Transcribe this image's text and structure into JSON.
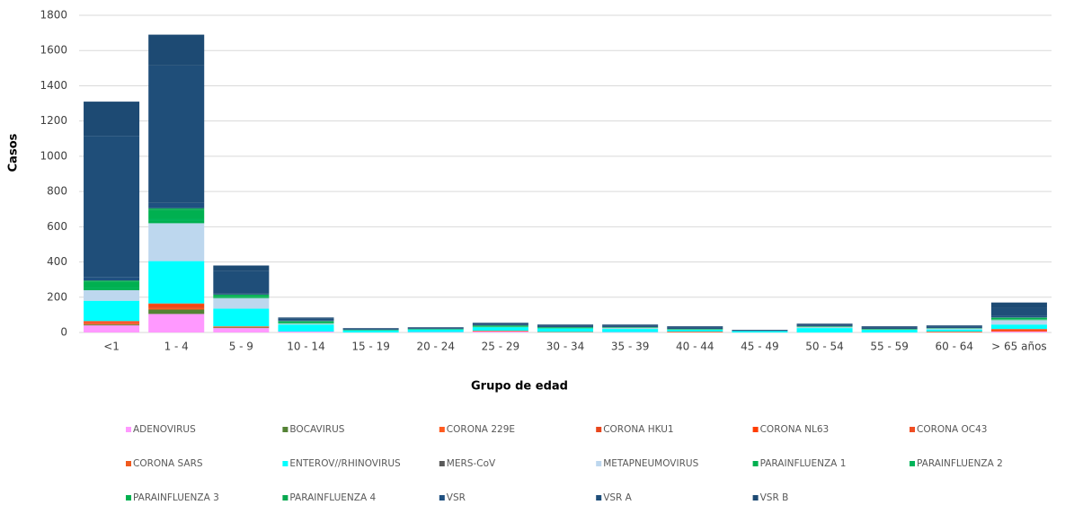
{
  "chart_data": {
    "type": "stacked-bar",
    "x_label": "Grupo de edad",
    "y_label": "Casos",
    "categories": [
      "<1",
      "1 - 4",
      "5 - 9",
      "10 - 14",
      "15 - 19",
      "20 - 24",
      "25 - 29",
      "30 - 34",
      "35 - 39",
      "40 - 44",
      "45 - 49",
      "50 - 54",
      "55 - 59",
      "60 - 64",
      "> 65 años"
    ],
    "ylim": [
      0,
      1800
    ],
    "yticks": [
      0,
      200,
      400,
      600,
      800,
      1000,
      1200,
      1400,
      1600,
      1800
    ],
    "grid": true,
    "series": [
      {
        "name": "ADENOVIRUS",
        "color": "#ff99ff",
        "values": [
          40,
          105,
          25,
          5,
          0,
          2,
          5,
          0,
          2,
          0,
          0,
          0,
          0,
          0,
          5
        ]
      },
      {
        "name": "BOCAVIRUS",
        "color": "#548235",
        "values": [
          5,
          25,
          3,
          0,
          0,
          0,
          0,
          0,
          0,
          0,
          0,
          0,
          0,
          0,
          0
        ]
      },
      {
        "name": "CORONA 229E",
        "color": "#ff5a1f",
        "values": [
          5,
          10,
          2,
          0,
          0,
          0,
          2,
          1,
          0,
          2,
          0,
          0,
          0,
          2,
          5
        ]
      },
      {
        "name": "CORONA HKU1",
        "color": "#e8461c",
        "values": [
          5,
          10,
          2,
          0,
          0,
          0,
          1,
          1,
          0,
          1,
          0,
          0,
          0,
          1,
          3
        ]
      },
      {
        "name": "CORONA NL63",
        "color": "#ff3d00",
        "values": [
          5,
          10,
          2,
          0,
          0,
          0,
          1,
          1,
          0,
          1,
          0,
          0,
          0,
          1,
          3
        ]
      },
      {
        "name": "CORONA OC43",
        "color": "#f04e23",
        "values": [
          5,
          5,
          1,
          0,
          0,
          0,
          1,
          0,
          0,
          1,
          0,
          0,
          0,
          1,
          4
        ]
      },
      {
        "name": "CORONA SARS",
        "color": "#f05a1e",
        "values": [
          0,
          0,
          0,
          0,
          0,
          0,
          0,
          0,
          0,
          0,
          0,
          0,
          0,
          0,
          0
        ]
      },
      {
        "name": "ENTEROV//RHINOVIRUS",
        "color": "#00ffff",
        "values": [
          115,
          240,
          100,
          40,
          12,
          15,
          20,
          20,
          18,
          10,
          8,
          25,
          15,
          12,
          25
        ]
      },
      {
        "name": "MERS-CoV",
        "color": "#595959",
        "values": [
          0,
          0,
          0,
          0,
          0,
          0,
          0,
          0,
          0,
          0,
          0,
          0,
          0,
          0,
          0
        ]
      },
      {
        "name": "METAPNEUMOVIRUS",
        "color": "#bdd7ee",
        "values": [
          60,
          215,
          60,
          5,
          0,
          0,
          0,
          0,
          5,
          0,
          0,
          5,
          0,
          5,
          25
        ]
      },
      {
        "name": "PARAINFLUENZA 1",
        "color": "#00b050",
        "values": [
          10,
          15,
          5,
          3,
          0,
          0,
          2,
          1,
          1,
          1,
          0,
          1,
          1,
          0,
          3
        ]
      },
      {
        "name": "PARAINFLUENZA 2",
        "color": "#00b45a",
        "values": [
          5,
          10,
          2,
          2,
          0,
          0,
          2,
          1,
          1,
          1,
          0,
          1,
          1,
          0,
          2
        ]
      },
      {
        "name": "PARAINFLUENZA 3",
        "color": "#00b050",
        "values": [
          35,
          50,
          10,
          8,
          3,
          3,
          5,
          4,
          2,
          2,
          0,
          2,
          2,
          2,
          8
        ]
      },
      {
        "name": "PARAINFLUENZA 4",
        "color": "#07a84f",
        "values": [
          5,
          10,
          3,
          2,
          0,
          0,
          1,
          1,
          1,
          1,
          0,
          1,
          1,
          1,
          2
        ]
      },
      {
        "name": "VSR",
        "color": "#1f5080",
        "values": [
          20,
          30,
          5,
          5,
          2,
          2,
          3,
          3,
          3,
          3,
          1,
          3,
          3,
          3,
          10
        ]
      },
      {
        "name": "VSR A",
        "color": "#1f4e79",
        "values": [
          800,
          780,
          130,
          10,
          5,
          5,
          7,
          7,
          7,
          7,
          4,
          7,
          7,
          7,
          45
        ]
      },
      {
        "name": "VSR B",
        "color": "#1d4a73",
        "values": [
          195,
          175,
          30,
          5,
          3,
          3,
          5,
          5,
          5,
          5,
          2,
          5,
          5,
          5,
          30
        ]
      }
    ]
  }
}
